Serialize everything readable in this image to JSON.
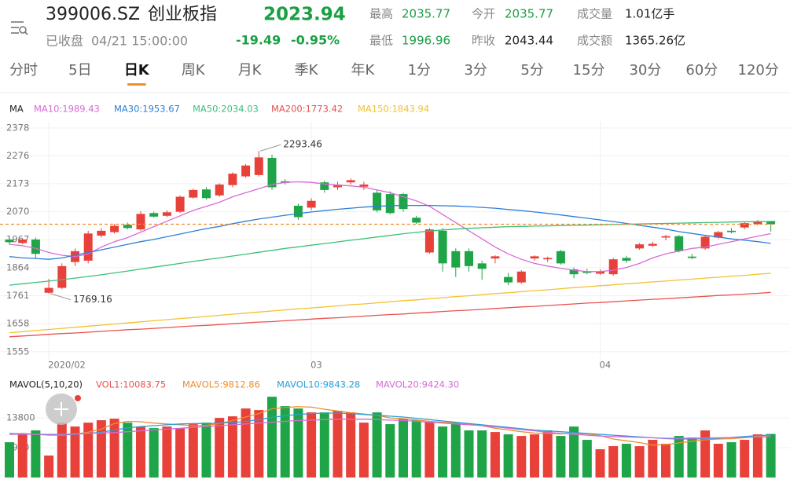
{
  "header": {
    "code": "399006.SZ",
    "name": "创业板指",
    "price": "2023.94",
    "status": "已收盘",
    "datetime": "04/21 15:00:00",
    "change": "-19.49",
    "change_pct": "-0.95%",
    "stats": [
      {
        "label": "最高",
        "value": "2035.77"
      },
      {
        "label": "今开",
        "value": "2035.77"
      },
      {
        "label": "成交量",
        "value": "1.01亿手"
      },
      {
        "label": "最低",
        "value": "1996.96"
      },
      {
        "label": "昨收",
        "value": "2043.44"
      },
      {
        "label": "成交额",
        "value": "1365.26亿"
      }
    ]
  },
  "tabs": [
    {
      "label": "分时"
    },
    {
      "label": "5日"
    },
    {
      "label": "日K",
      "active": true
    },
    {
      "label": "周K"
    },
    {
      "label": "月K"
    },
    {
      "label": "季K"
    },
    {
      "label": "年K"
    },
    {
      "label": "1分"
    },
    {
      "label": "3分"
    },
    {
      "label": "5分"
    },
    {
      "label": "15分"
    },
    {
      "label": "30分"
    },
    {
      "label": "60分"
    },
    {
      "label": "120分"
    }
  ],
  "chart_data": [
    {
      "type": "candlestick",
      "legend_title": "MA",
      "up_color": "#e8413a",
      "down_color": "#1fa448",
      "last_price_line_color": "#f08c2e",
      "grid": true,
      "categories": [
        null,
        null,
        null,
        "2020/02",
        null,
        null,
        null,
        null,
        null,
        null,
        null,
        null,
        null,
        null,
        null,
        null,
        null,
        null,
        null,
        null,
        null,
        null,
        null,
        "03",
        null,
        null,
        null,
        null,
        null,
        null,
        null,
        null,
        null,
        null,
        null,
        null,
        null,
        null,
        null,
        null,
        null,
        null,
        null,
        null,
        null,
        "04",
        null,
        null,
        null,
        null,
        null,
        null,
        null,
        null,
        null,
        null,
        null,
        null,
        null
      ],
      "open": [
        1968,
        1955,
        1968,
        1772,
        1790,
        1885,
        1890,
        1982,
        1995,
        2022,
        2005,
        2065,
        2055,
        2070,
        2122,
        2152,
        2130,
        2168,
        2200,
        2205,
        2268,
        2182,
        2092,
        2085,
        2178,
        2160,
        2178,
        2162,
        2140,
        2135,
        2135,
        2048,
        1920,
        2000,
        1925,
        1925,
        1880,
        1898,
        1830,
        1810,
        1898,
        1895,
        1925,
        1858,
        1850,
        1842,
        1840,
        1900,
        1935,
        1945,
        1975,
        1980,
        1905,
        1935,
        1975,
        2000,
        2012,
        2025,
        2035.77
      ],
      "high": [
        1978,
        1972,
        1975,
        1823,
        1880,
        1935,
        2000,
        2010,
        2025,
        2030,
        2072,
        2070,
        2075,
        2130,
        2155,
        2160,
        2175,
        2215,
        2245,
        2293.46,
        2280,
        2190,
        2100,
        2120,
        2185,
        2180,
        2192,
        2180,
        2150,
        2145,
        2140,
        2055,
        2010,
        2010,
        1935,
        1935,
        1890,
        1910,
        1845,
        1855,
        1910,
        1905,
        1930,
        1865,
        1860,
        1858,
        1900,
        1908,
        1955,
        1960,
        1985,
        1985,
        1915,
        1985,
        2000,
        2010,
        2035,
        2040,
        2035.77
      ],
      "low": [
        1948,
        1950,
        1898,
        1769.16,
        1785,
        1870,
        1880,
        1975,
        1990,
        2005,
        2000,
        2048,
        2050,
        2065,
        2118,
        2115,
        2125,
        2160,
        2195,
        2200,
        2150,
        2170,
        2040,
        2075,
        2140,
        2150,
        2170,
        2150,
        2068,
        2060,
        2070,
        2025,
        1915,
        1850,
        1830,
        1850,
        1820,
        1880,
        1800,
        1805,
        1890,
        1885,
        1875,
        1825,
        1840,
        1838,
        1835,
        1882,
        1930,
        1940,
        1965,
        1920,
        1895,
        1930,
        1970,
        1990,
        2005,
        2020,
        1996.96
      ],
      "close": [
        1958,
        1968,
        1915,
        1790,
        1870,
        1925,
        1990,
        2000,
        2018,
        2010,
        2062,
        2052,
        2068,
        2125,
        2150,
        2120,
        2170,
        2210,
        2240,
        2270,
        2160,
        2176,
        2050,
        2110,
        2150,
        2170,
        2186,
        2170,
        2075,
        2065,
        2080,
        2030,
        2005,
        1880,
        1865,
        1870,
        1860,
        1906,
        1810,
        1850,
        1906,
        1900,
        1880,
        1840,
        1845,
        1850,
        1895,
        1890,
        1950,
        1952,
        1980,
        1925,
        1900,
        1978,
        1995,
        1995,
        2028,
        2035,
        2023.94
      ],
      "lines": [
        {
          "name": "MA10:1989.43",
          "color": "#d96ad6",
          "values": [
            1950,
            1945,
            1935,
            1920,
            1910,
            1905,
            1915,
            1940,
            1960,
            1975,
            1995,
            2015,
            2035,
            2055,
            2075,
            2090,
            2105,
            2125,
            2140,
            2155,
            2170,
            2178,
            2180,
            2178,
            2172,
            2168,
            2165,
            2160,
            2150,
            2140,
            2125,
            2110,
            2090,
            2060,
            2030,
            2000,
            1970,
            1940,
            1915,
            1895,
            1880,
            1870,
            1862,
            1855,
            1850,
            1850,
            1855,
            1865,
            1880,
            1900,
            1915,
            1925,
            1935,
            1940,
            1950,
            1960,
            1970,
            1980,
            1989.43
          ]
        },
        {
          "name": "MA30:1953.67",
          "color": "#2f7fd6",
          "values": [
            1905,
            1900,
            1898,
            1895,
            1900,
            1910,
            1920,
            1930,
            1940,
            1950,
            1960,
            1968,
            1978,
            1988,
            1998,
            2008,
            2016,
            2026,
            2035,
            2043,
            2050,
            2057,
            2063,
            2069,
            2074,
            2079,
            2083,
            2087,
            2090,
            2092,
            2093,
            2093,
            2093,
            2092,
            2091,
            2089,
            2086,
            2083,
            2078,
            2074,
            2069,
            2064,
            2058,
            2052,
            2046,
            2040,
            2034,
            2027,
            2020,
            2013,
            2006,
            1997,
            1990,
            1983,
            1977,
            1970,
            1965,
            1960,
            1953.67
          ]
        },
        {
          "name": "MA50:2034.03",
          "color": "#3cbf7a",
          "values": [
            1800,
            1805,
            1810,
            1815,
            1820,
            1826,
            1832,
            1838,
            1845,
            1852,
            1859,
            1866,
            1873,
            1880,
            1887,
            1894,
            1900,
            1907,
            1914,
            1921,
            1928,
            1935,
            1941,
            1947,
            1953,
            1959,
            1965,
            1971,
            1977,
            1983,
            1989,
            1994,
            1999,
            2003,
            2006,
            2009,
            2011,
            2013,
            2015,
            2016,
            2017,
            2018,
            2019,
            2020,
            2021,
            2022,
            2023,
            2024,
            2025,
            2026,
            2027,
            2028,
            2029,
            2030,
            2031,
            2032,
            2033,
            2033.5,
            2034.03
          ]
        },
        {
          "name": "MA200:1773.42",
          "color": "#e8534f",
          "values": [
            1610,
            1613,
            1616,
            1619,
            1622,
            1624,
            1627,
            1630,
            1633,
            1636,
            1638,
            1641,
            1644,
            1647,
            1650,
            1652,
            1655,
            1658,
            1661,
            1664,
            1666,
            1669,
            1672,
            1675,
            1678,
            1680,
            1683,
            1686,
            1689,
            1692,
            1694,
            1697,
            1700,
            1703,
            1706,
            1708,
            1711,
            1714,
            1717,
            1720,
            1722,
            1725,
            1728,
            1731,
            1734,
            1736,
            1739,
            1742,
            1745,
            1748,
            1750,
            1753,
            1756,
            1759,
            1762,
            1764,
            1767,
            1770,
            1773.42
          ]
        },
        {
          "name": "MA150:1843.94",
          "color": "#f2c230",
          "values": [
            1625,
            1629,
            1633,
            1637,
            1641,
            1645,
            1649,
            1653,
            1657,
            1661,
            1665,
            1669,
            1673,
            1677,
            1681,
            1685,
            1689,
            1693,
            1697,
            1701,
            1705,
            1709,
            1713,
            1716,
            1720,
            1724,
            1728,
            1731,
            1735,
            1739,
            1743,
            1746,
            1750,
            1754,
            1758,
            1761,
            1765,
            1769,
            1772,
            1776,
            1780,
            1783,
            1787,
            1791,
            1794,
            1798,
            1801,
            1805,
            1808,
            1812,
            1815,
            1819,
            1822,
            1826,
            1829,
            1833,
            1836,
            1840,
            1843.94
          ]
        }
      ],
      "ylim": [
        1520,
        2401
      ],
      "yticks": [
        1555,
        1658,
        1761,
        1864,
        1967,
        2070,
        2173,
        2276,
        2378
      ]
    },
    {
      "type": "bar",
      "legend_title": "MAVOL(5,10,20)",
      "up_color": "#e8413a",
      "down_color": "#1fa448",
      "name": "VOL1:10083.75",
      "color": "#e8534f",
      "values": [
        8170,
        9990,
        10900,
        5080,
        12700,
        11800,
        12700,
        13260,
        13620,
        12700,
        11800,
        11440,
        11800,
        11440,
        12350,
        12700,
        13800,
        14160,
        15980,
        15620,
        18700,
        16530,
        15980,
        15070,
        15070,
        15440,
        15070,
        12710,
        15070,
        12350,
        13620,
        13260,
        12900,
        11800,
        12710,
        10900,
        10900,
        10530,
        9990,
        9620,
        9990,
        10900,
        9620,
        11800,
        8720,
        6540,
        7260,
        7810,
        7260,
        8720,
        7810,
        9620,
        9260,
        10900,
        7810,
        8170,
        8720,
        9990,
        10083.75
      ],
      "lines": [
        {
          "name": "MAVOL5:9812.86",
          "color": "#f08c2e",
          "values": [
            10000,
            10200,
            10000,
            9800,
            9800,
            10000,
            10500,
            11200,
            12500,
            13000,
            12900,
            12600,
            12400,
            12200,
            12000,
            12100,
            12500,
            13200,
            14000,
            14800,
            15900,
            16200,
            16400,
            16300,
            15800,
            15400,
            15000,
            14700,
            14400,
            13800,
            13600,
            13300,
            13000,
            12800,
            12700,
            12400,
            12000,
            11400,
            11000,
            10600,
            10300,
            10200,
            10100,
            10200,
            10100,
            9700,
            8900,
            8500,
            8100,
            7500,
            7600,
            8000,
            8400,
            8700,
            8900,
            9000,
            9200,
            9500,
            9812.86
          ]
        },
        {
          "name": "MAVOL10:9843.28",
          "color": "#2a9fd8",
          "values": [
            10200,
            10100,
            10000,
            9900,
            9900,
            10000,
            10200,
            10500,
            11000,
            11500,
            11800,
            12000,
            12200,
            12400,
            12500,
            12500,
            12600,
            12700,
            13000,
            13400,
            13900,
            14300,
            14600,
            14800,
            14900,
            14900,
            14800,
            14600,
            14400,
            14200,
            14000,
            13700,
            13400,
            13100,
            12800,
            12500,
            12200,
            11900,
            11600,
            11300,
            11000,
            10800,
            10600,
            10400,
            10200,
            10000,
            9800,
            9600,
            9400,
            9200,
            9000,
            8900,
            8900,
            9000,
            9100,
            9300,
            9500,
            9700,
            9843.28
          ]
        },
        {
          "name": "MAVOL20:9424.30",
          "color": "#d66bd6",
          "values": [
            10000,
            10000,
            10000,
            10000,
            10000,
            10100,
            10200,
            10300,
            10400,
            10600,
            10800,
            11000,
            11200,
            11400,
            11600,
            11800,
            12000,
            12200,
            12400,
            12600,
            12800,
            13000,
            13200,
            13300,
            13400,
            13500,
            13500,
            13500,
            13400,
            13300,
            13200,
            13000,
            12800,
            12600,
            12400,
            12200,
            12000,
            11700,
            11400,
            11100,
            10800,
            10500,
            10200,
            10000,
            9800,
            9600,
            9500,
            9400,
            9300,
            9200,
            9100,
            9100,
            9100,
            9150,
            9200,
            9250,
            9300,
            9350,
            9424.3
          ]
        }
      ],
      "ylim": [
        0,
        20000
      ],
      "yticks": [
        6900,
        13800
      ]
    }
  ]
}
